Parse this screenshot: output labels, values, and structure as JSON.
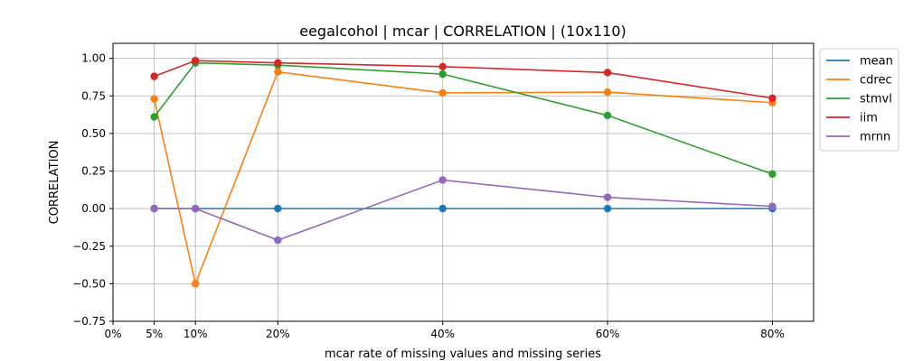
{
  "chart_data": {
    "type": "line",
    "title": "eegalcohol | mcar | CORRELATION | (10x110)",
    "xlabel": "mcar rate of missing values and missing series",
    "ylabel": "CORRELATION",
    "x": [
      5,
      10,
      20,
      40,
      60,
      80
    ],
    "x_ticks": [
      0,
      5,
      10,
      20,
      40,
      60,
      80
    ],
    "x_tick_labels": [
      "0%",
      "5%",
      "10%",
      "20%",
      "40%",
      "60%",
      "80%"
    ],
    "xlim": [
      0,
      85
    ],
    "ylim": [
      -0.75,
      1.1
    ],
    "y_ticks": [
      -0.75,
      -0.5,
      -0.25,
      0.0,
      0.25,
      0.5,
      0.75,
      1.0
    ],
    "y_tick_labels": [
      "−0.75",
      "−0.50",
      "−0.25",
      "0.00",
      "0.25",
      "0.50",
      "0.75",
      "1.00"
    ],
    "grid": true,
    "legend_position": "outside-top-right",
    "series": [
      {
        "name": "mean",
        "color": "#1f77b4",
        "values": [
          0.0,
          0.0,
          0.0,
          0.0,
          0.0,
          0.0
        ]
      },
      {
        "name": "cdrec",
        "color": "#ff7f0e",
        "values": [
          0.73,
          -0.5,
          0.91,
          0.77,
          0.775,
          0.705
        ]
      },
      {
        "name": "stmvl",
        "color": "#2ca02c",
        "values": [
          0.61,
          0.97,
          0.955,
          0.895,
          0.62,
          0.23
        ]
      },
      {
        "name": "iim",
        "color": "#d62728",
        "values": [
          0.88,
          0.985,
          0.97,
          0.945,
          0.905,
          0.735
        ]
      },
      {
        "name": "mrnn",
        "color": "#9467bd",
        "values": [
          0.0,
          0.0,
          -0.21,
          0.19,
          0.075,
          0.015
        ]
      }
    ]
  }
}
